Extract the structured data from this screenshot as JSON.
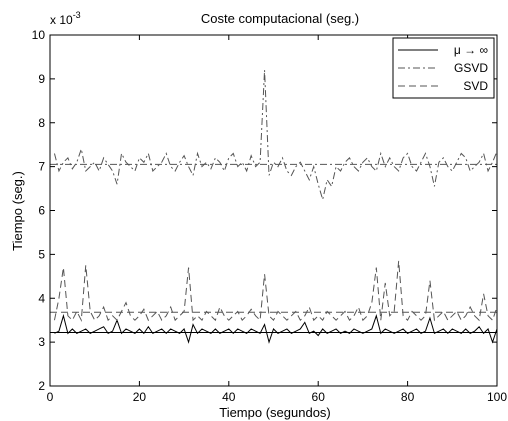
{
  "chart_data": {
    "type": "line",
    "title": "Coste computacional (seg.)",
    "xlabel": "Tiempo (segundos)",
    "ylabel": "Tiempo (seg.)",
    "y_multiplier_label": "x 10",
    "y_multiplier_exponent": "-3",
    "xlim": [
      0,
      100
    ],
    "ylim": [
      2,
      10
    ],
    "xticks": [
      0,
      20,
      40,
      60,
      80,
      100
    ],
    "yticks": [
      2,
      3,
      4,
      5,
      6,
      7,
      8,
      9,
      10
    ],
    "legend_position": "top-right",
    "grid": false,
    "colors": {
      "mu": "#000000",
      "gsvd": "#555555",
      "svd": "#555555",
      "frame": "#000000"
    },
    "series": [
      {
        "name": "μ → ∞",
        "style": "solid",
        "x": [
          1,
          2,
          3,
          4,
          5,
          6,
          7,
          8,
          9,
          10,
          11,
          12,
          13,
          14,
          15,
          16,
          17,
          18,
          19,
          20,
          21,
          22,
          23,
          24,
          25,
          26,
          27,
          28,
          29,
          30,
          31,
          32,
          33,
          34,
          35,
          36,
          37,
          38,
          39,
          40,
          41,
          42,
          43,
          44,
          45,
          46,
          47,
          48,
          49,
          50,
          51,
          52,
          53,
          54,
          55,
          56,
          57,
          58,
          59,
          60,
          61,
          62,
          63,
          64,
          65,
          66,
          67,
          68,
          69,
          70,
          71,
          72,
          73,
          74,
          75,
          76,
          77,
          78,
          79,
          80,
          81,
          82,
          83,
          84,
          85,
          86,
          87,
          88,
          89,
          90,
          91,
          92,
          93,
          94,
          95,
          96,
          97,
          98,
          99,
          100
        ],
        "y": [
          3.2,
          3.25,
          3.6,
          3.2,
          3.3,
          3.2,
          3.25,
          3.3,
          3.2,
          3.25,
          3.3,
          3.35,
          3.2,
          3.25,
          3.5,
          3.2,
          3.3,
          3.25,
          3.2,
          3.3,
          3.2,
          3.35,
          3.2,
          3.25,
          3.3,
          3.2,
          3.3,
          3.25,
          3.2,
          3.3,
          3.0,
          3.4,
          3.2,
          3.3,
          3.25,
          3.2,
          3.3,
          3.2,
          3.25,
          3.3,
          3.2,
          3.3,
          3.25,
          3.2,
          3.3,
          3.25,
          3.2,
          3.4,
          3.0,
          3.3,
          3.2,
          3.25,
          3.3,
          3.2,
          3.25,
          3.3,
          3.45,
          3.2,
          3.25,
          3.15,
          3.3,
          3.2,
          3.25,
          3.3,
          3.2,
          3.25,
          3.2,
          3.3,
          3.25,
          3.2,
          3.25,
          3.3,
          3.6,
          3.2,
          3.3,
          3.25,
          3.2,
          3.25,
          3.3,
          3.2,
          3.25,
          3.3,
          3.2,
          3.25,
          3.55,
          3.2,
          3.25,
          3.3,
          3.2,
          3.3,
          3.25,
          3.2,
          3.3,
          3.2,
          3.25,
          3.35,
          3.2,
          3.3,
          3.0,
          3.3
        ]
      },
      {
        "name": "GSVD",
        "style": "dashdot",
        "x": [
          1,
          2,
          3,
          4,
          5,
          6,
          7,
          8,
          9,
          10,
          11,
          12,
          13,
          14,
          15,
          16,
          17,
          18,
          19,
          20,
          21,
          22,
          23,
          24,
          25,
          26,
          27,
          28,
          29,
          30,
          31,
          32,
          33,
          34,
          35,
          36,
          37,
          38,
          39,
          40,
          41,
          42,
          43,
          44,
          45,
          46,
          47,
          48,
          49,
          50,
          51,
          52,
          53,
          54,
          55,
          56,
          57,
          58,
          59,
          60,
          61,
          62,
          63,
          64,
          65,
          66,
          67,
          68,
          69,
          70,
          71,
          72,
          73,
          74,
          75,
          76,
          77,
          78,
          79,
          80,
          81,
          82,
          83,
          84,
          85,
          86,
          87,
          88,
          89,
          90,
          91,
          92,
          93,
          94,
          95,
          96,
          97,
          98,
          99,
          100
        ],
        "y": [
          7.3,
          6.9,
          7.1,
          7.2,
          6.95,
          7.1,
          7.4,
          6.9,
          7.0,
          7.1,
          6.9,
          7.2,
          7.05,
          6.9,
          6.6,
          7.3,
          7.1,
          7.0,
          6.9,
          7.2,
          7.1,
          7.3,
          6.9,
          7.0,
          7.1,
          7.3,
          7.0,
          6.9,
          7.1,
          7.25,
          7.0,
          6.8,
          7.3,
          7.0,
          7.1,
          6.95,
          7.2,
          7.1,
          6.9,
          7.2,
          7.3,
          7.0,
          7.1,
          6.9,
          7.25,
          7.0,
          7.1,
          9.2,
          6.8,
          7.1,
          7.0,
          7.2,
          6.9,
          6.8,
          7.0,
          7.1,
          6.9,
          6.7,
          7.0,
          6.6,
          6.25,
          6.7,
          6.55,
          7.0,
          6.9,
          7.1,
          7.2,
          7.0,
          6.9,
          7.1,
          7.2,
          7.0,
          6.9,
          7.3,
          7.0,
          7.2,
          7.0,
          6.9,
          7.2,
          7.3,
          7.0,
          6.9,
          7.1,
          7.3,
          7.0,
          6.55,
          7.1,
          7.2,
          7.0,
          6.9,
          7.1,
          7.3,
          7.2,
          6.9,
          7.0,
          7.1,
          7.3,
          6.9,
          7.1,
          7.35
        ]
      },
      {
        "name": "SVD",
        "style": "dashed",
        "x": [
          1,
          2,
          3,
          4,
          5,
          6,
          7,
          8,
          9,
          10,
          11,
          12,
          13,
          14,
          15,
          16,
          17,
          18,
          19,
          20,
          21,
          22,
          23,
          24,
          25,
          26,
          27,
          28,
          29,
          30,
          31,
          32,
          33,
          34,
          35,
          36,
          37,
          38,
          39,
          40,
          41,
          42,
          43,
          44,
          45,
          46,
          47,
          48,
          49,
          50,
          51,
          52,
          53,
          54,
          55,
          56,
          57,
          58,
          59,
          60,
          61,
          62,
          63,
          64,
          65,
          66,
          67,
          68,
          69,
          70,
          71,
          72,
          73,
          74,
          75,
          76,
          77,
          78,
          79,
          80,
          81,
          82,
          83,
          84,
          85,
          86,
          87,
          88,
          89,
          90,
          91,
          92,
          93,
          94,
          95,
          96,
          97,
          98,
          99,
          100
        ],
        "y": [
          3.5,
          4.0,
          4.7,
          3.6,
          3.5,
          3.7,
          3.5,
          4.75,
          3.7,
          3.5,
          3.6,
          3.8,
          3.5,
          3.6,
          3.5,
          3.7,
          3.9,
          3.6,
          3.5,
          3.6,
          3.75,
          3.5,
          3.6,
          3.7,
          3.5,
          3.6,
          3.8,
          3.5,
          3.6,
          3.7,
          4.7,
          3.5,
          3.6,
          3.5,
          3.7,
          3.6,
          3.5,
          3.8,
          3.6,
          3.5,
          3.6,
          3.7,
          3.5,
          3.6,
          3.75,
          3.6,
          3.5,
          4.55,
          3.6,
          3.5,
          3.7,
          3.6,
          3.5,
          3.6,
          3.7,
          3.5,
          3.6,
          3.8,
          3.5,
          3.6,
          3.5,
          3.7,
          3.6,
          3.5,
          3.6,
          3.7,
          3.5,
          3.6,
          3.8,
          3.5,
          3.6,
          3.9,
          4.7,
          3.5,
          4.35,
          3.6,
          3.7,
          4.85,
          3.6,
          3.5,
          3.7,
          3.6,
          3.5,
          3.6,
          4.4,
          3.5,
          3.6,
          3.7,
          3.5,
          3.6,
          3.7,
          3.5,
          3.6,
          3.8,
          3.6,
          3.5,
          4.1,
          3.6,
          3.5,
          3.8
        ]
      }
    ]
  }
}
